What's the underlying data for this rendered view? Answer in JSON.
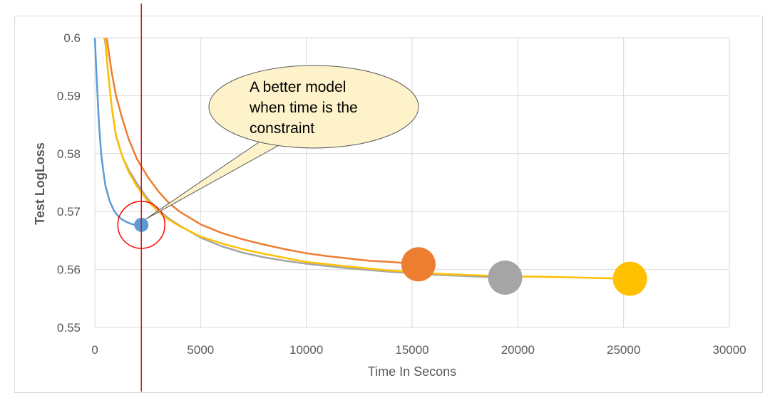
{
  "chart_data": {
    "type": "line",
    "title": "",
    "xlabel": "Time In Secons",
    "ylabel": "Test LogLoss",
    "xlim": [
      0,
      30000
    ],
    "ylim": [
      0.55,
      0.6
    ],
    "x_ticks": [
      "0",
      "5000",
      "10000",
      "15000",
      "20000",
      "25000",
      "30000"
    ],
    "y_ticks": [
      "0.55",
      "0.56",
      "0.57",
      "0.58",
      "0.59",
      "0.6"
    ],
    "grid": true,
    "legend": "none",
    "series": [
      {
        "color": "#5b9bd5",
        "x": [
          0,
          50,
          100,
          200,
          300,
          400,
          500,
          700,
          900,
          1100,
          1300,
          1500,
          1700,
          1900,
          2200
        ],
        "y": [
          0.6,
          0.596,
          0.592,
          0.585,
          0.58,
          0.577,
          0.5745,
          0.5718,
          0.5702,
          0.5692,
          0.5686,
          0.5682,
          0.5679,
          0.5677,
          0.5677
        ],
        "end_marker": {
          "x": 2200,
          "y": 0.5677,
          "size": "small"
        }
      },
      {
        "color": "#ed7d31",
        "x": [
          550,
          600,
          800,
          1000,
          1300,
          1600,
          2000,
          2500,
          3000,
          3500,
          4000,
          5000,
          6000,
          7000,
          8000,
          9000,
          10000,
          11000,
          12000,
          13000,
          14000,
          15000,
          15300
        ],
        "y": [
          0.6,
          0.599,
          0.594,
          0.59,
          0.586,
          0.5825,
          0.579,
          0.576,
          0.5735,
          0.5715,
          0.57,
          0.5678,
          0.5663,
          0.5652,
          0.5643,
          0.5635,
          0.5628,
          0.5623,
          0.5619,
          0.5615,
          0.5613,
          0.561,
          0.5609
        ],
        "end_marker": {
          "x": 15300,
          "y": 0.5609,
          "size": "large"
        }
      },
      {
        "color": "#a5a5a5",
        "x": [
          450,
          500,
          600,
          800,
          1000,
          1300,
          1600,
          2000,
          2500,
          3000,
          3500,
          4000,
          5000,
          6000,
          7000,
          8000,
          9000,
          10000,
          12000,
          14000,
          16000,
          18000,
          19400
        ],
        "y": [
          0.6,
          0.599,
          0.595,
          0.588,
          0.583,
          0.5795,
          0.5772,
          0.5748,
          0.5722,
          0.5703,
          0.5688,
          0.5676,
          0.5655,
          0.564,
          0.5629,
          0.5621,
          0.5615,
          0.561,
          0.5602,
          0.5596,
          0.5591,
          0.5588,
          0.5586
        ],
        "end_marker": {
          "x": 19400,
          "y": 0.5586,
          "size": "large"
        }
      },
      {
        "color": "#ffc000",
        "x": [
          480,
          520,
          600,
          800,
          1000,
          1300,
          1600,
          2000,
          2500,
          3000,
          3500,
          4000,
          5000,
          6000,
          7000,
          8000,
          9000,
          10000,
          12000,
          14000,
          16000,
          18000,
          20000,
          22000,
          24000,
          25300
        ],
        "y": [
          0.6,
          0.599,
          0.595,
          0.588,
          0.5832,
          0.5795,
          0.5768,
          0.5743,
          0.5718,
          0.57,
          0.5686,
          0.5675,
          0.5657,
          0.5645,
          0.5635,
          0.5627,
          0.562,
          0.5613,
          0.5605,
          0.5598,
          0.5593,
          0.559,
          0.5588,
          0.5587,
          0.5585,
          0.5584
        ],
        "end_marker": {
          "x": 25300,
          "y": 0.5584,
          "size": "large"
        }
      }
    ],
    "annotations": {
      "vertical_line": {
        "x": 2200,
        "color": "#ff0000"
      },
      "circle": {
        "x": 2200,
        "y": 0.5677,
        "color": "#ff0000"
      },
      "callout": {
        "lines": [
          "A better model",
          "when time is the",
          "constraint"
        ],
        "fill": "#fdf2c9",
        "points_to": {
          "x": 2200,
          "y": 0.5677
        }
      }
    }
  },
  "colors": {
    "grid": "#d9d9d9",
    "axis_text": "#595959",
    "marker_blue": "#5b9bd5",
    "marker_orange": "#ed7d31",
    "marker_gray": "#a5a5a5",
    "marker_gold": "#ffc000"
  }
}
